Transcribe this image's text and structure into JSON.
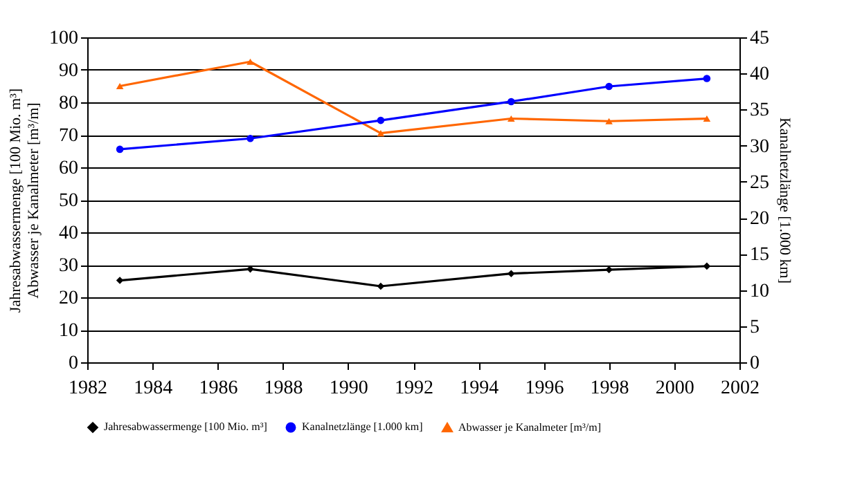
{
  "chart_data": {
    "type": "line",
    "x": [
      1983,
      1987,
      1991,
      1995,
      1998,
      2001
    ],
    "series": [
      {
        "name": "Jahresabwassermenge [100 Mio. m³]",
        "color": "#000000",
        "marker": "diamond",
        "values": [
          25.2,
          28.7,
          23.4,
          27.3,
          28.5,
          29.6
        ]
      },
      {
        "name": "Kanalnetzlänge [1.000 km]",
        "color": "#0000ff",
        "marker": "circle",
        "axis": "y2",
        "values": [
          29.5,
          31,
          33.5,
          36.1,
          38.2,
          39.3
        ]
      },
      {
        "name": "Abwasser je Kanalmeter [m³/m]",
        "color": "#ff6600",
        "marker": "triangle",
        "values": [
          85,
          92.5,
          70.5,
          75,
          74.2,
          75
        ]
      }
    ],
    "ylabel": "Jahresabwassermenge [100 Mio. m³]\nAbwasser je Kanalmeter [m³/m]",
    "y2label": "Kanalnetzlänge [1.000 km]",
    "xlim": [
      1982,
      2002
    ],
    "xticks": [
      1982,
      1984,
      1986,
      1988,
      1990,
      1992,
      1994,
      1996,
      1998,
      2000,
      2002
    ],
    "ylim": [
      0,
      100
    ],
    "yticks": [
      0,
      10,
      20,
      30,
      40,
      50,
      60,
      70,
      80,
      90,
      100
    ],
    "y2lim": [
      0,
      45
    ],
    "y2ticks": [
      0,
      5,
      10,
      15,
      20,
      25,
      30,
      35,
      40,
      45
    ],
    "grid": "y",
    "legend": "bottom",
    "line_style": "solid"
  }
}
